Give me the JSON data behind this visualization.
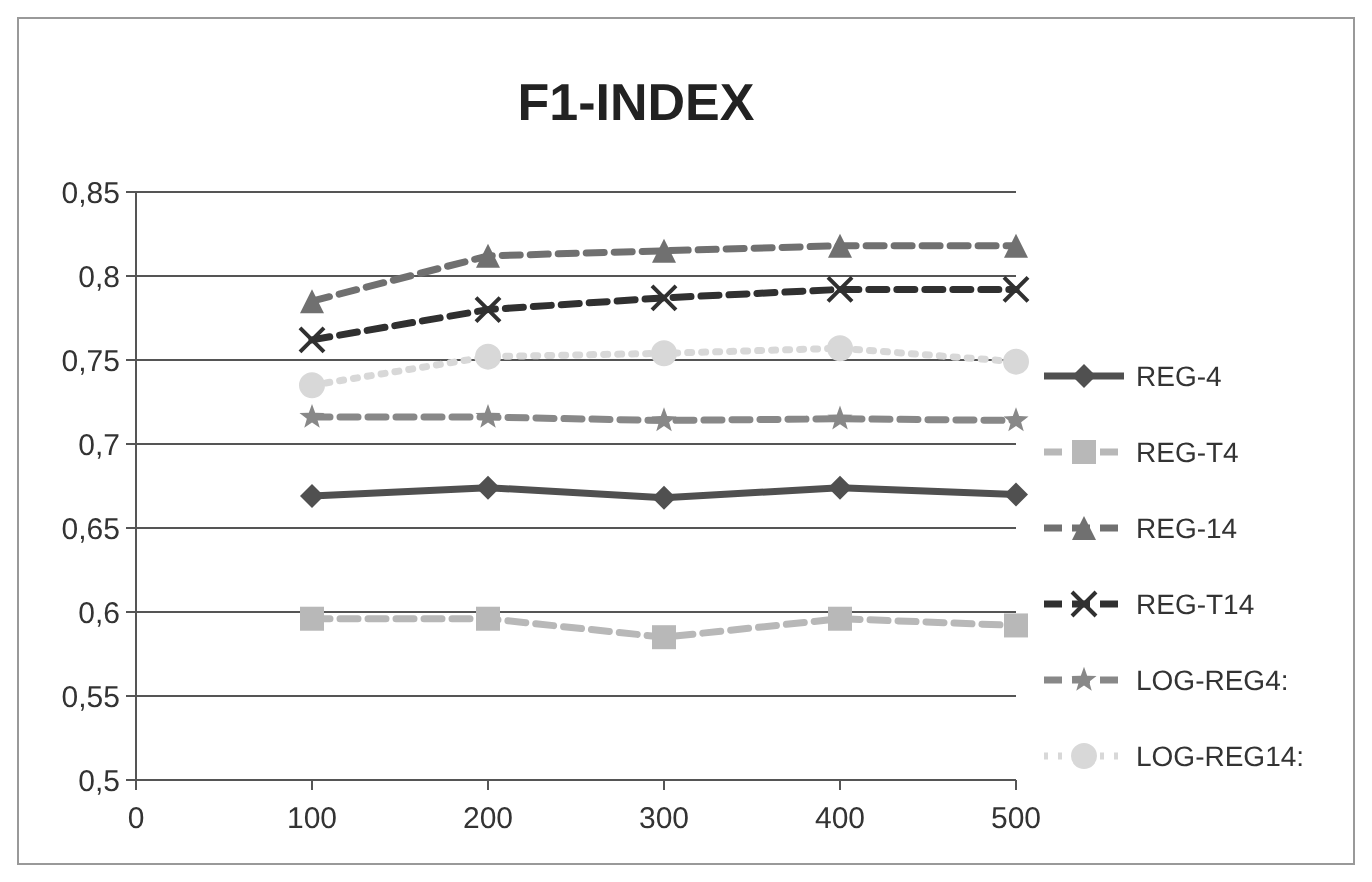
{
  "chart_data": {
    "type": "line",
    "title": "F1-INDEX",
    "x": [
      100,
      200,
      300,
      400,
      500
    ],
    "xlim": [
      0,
      500
    ],
    "xticks": [
      0,
      100,
      200,
      300,
      400,
      500
    ],
    "ylim": [
      0.5,
      0.85
    ],
    "yticks": [
      {
        "value": 0.5,
        "label": "0,5"
      },
      {
        "value": 0.55,
        "label": "0,55"
      },
      {
        "value": 0.6,
        "label": "0,6"
      },
      {
        "value": 0.65,
        "label": "0,65"
      },
      {
        "value": 0.7,
        "label": "0,7"
      },
      {
        "value": 0.75,
        "label": "0,75"
      },
      {
        "value": 0.8,
        "label": "0,8"
      },
      {
        "value": 0.85,
        "label": "0,85"
      }
    ],
    "grid": "y",
    "legend": "right",
    "series": [
      {
        "name": "REG-4",
        "color": "#505050",
        "marker": "diamond",
        "line_style": "solid",
        "values": [
          0.669,
          0.674,
          0.668,
          0.674,
          0.67
        ]
      },
      {
        "name": "REG-T4",
        "color": "#b8b8b8",
        "marker": "square",
        "line_style": "dashed",
        "values": [
          0.596,
          0.596,
          0.585,
          0.596,
          0.592
        ]
      },
      {
        "name": "REG-14",
        "color": "#707070",
        "marker": "triangle",
        "line_style": "dashed",
        "values": [
          0.785,
          0.812,
          0.815,
          0.818,
          0.818
        ]
      },
      {
        "name": "REG-T14",
        "color": "#303030",
        "marker": "cross",
        "line_style": "dashed",
        "values": [
          0.762,
          0.78,
          0.787,
          0.792,
          0.792
        ]
      },
      {
        "name": "LOG-REG4:",
        "color": "#888888",
        "marker": "star",
        "line_style": "dashed",
        "values": [
          0.716,
          0.716,
          0.714,
          0.715,
          0.714
        ]
      },
      {
        "name": "LOG-REG14:",
        "color": "#d8d8d8",
        "marker": "circle",
        "line_style": "dotted",
        "values": [
          0.735,
          0.752,
          0.754,
          0.757,
          0.749
        ]
      }
    ]
  }
}
